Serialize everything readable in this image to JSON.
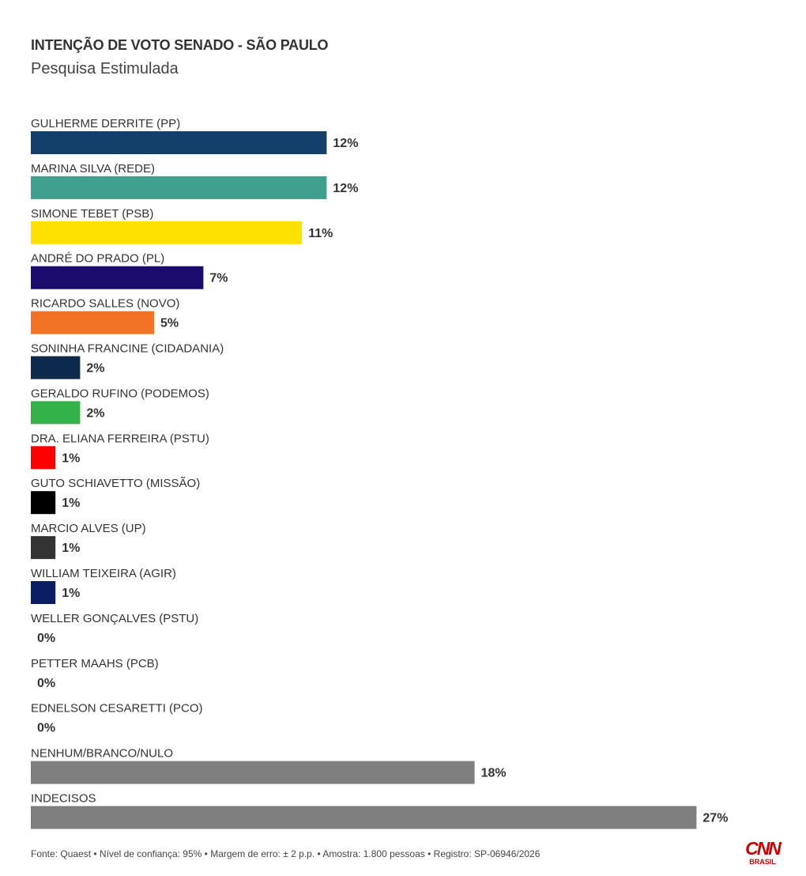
{
  "header": {
    "title": "INTENÇÃO DE VOTO SENADO - SÃO PAULO",
    "subtitle": "Pesquisa Estimulada"
  },
  "chart_data": {
    "type": "bar",
    "orientation": "horizontal",
    "value_suffix": "%",
    "xlim": [
      0,
      30
    ],
    "grid": false,
    "categories": [
      "GULHERME DERRITE (PP)",
      "MARINA SILVA (REDE)",
      "SIMONE TEBET (PSB)",
      "ANDRÉ DO PRADO (PL)",
      "RICARDO SALLES (NOVO)",
      "SONINHA FRANCINE (CIDADANIA)",
      "GERALDO RUFINO (PODEMOS)",
      "DRA. ELIANA FERREIRA (PSTU)",
      "GUTO SCHIAVETTO (MISSÃO)",
      "MARCIO ALVES (UP)",
      "WILLIAM TEIXEIRA (AGIR)",
      "WELLER GONÇALVES (PSTU)",
      "PETTER MAAHS (PCB)",
      "EDNELSON CESARETTI (PCO)",
      "NENHUM/BRANCO/NULO",
      "INDECISOS"
    ],
    "values": [
      12,
      12,
      11,
      7,
      5,
      2,
      2,
      1,
      1,
      1,
      1,
      0,
      0,
      0,
      18,
      27
    ],
    "colors": [
      "#123f6b",
      "#40a08f",
      "#ffe100",
      "#1c0c6e",
      "#f27325",
      "#0c2b4c",
      "#33b24a",
      "#ff0000",
      "#000000",
      "#333333",
      "#0c1e63",
      "#999999",
      "#999999",
      "#999999",
      "#7f7f7f",
      "#7f7f7f"
    ]
  },
  "footer": {
    "source": "Fonte: Quaest • Nível de confiança: 95% • Margem de erro: ± 2 p.p. • Amostra: 1.800 pessoas • Registro: SP-06946/2026"
  },
  "logo": {
    "brand": "CNN",
    "sub": "BRASIL",
    "color": "#cc0000"
  }
}
